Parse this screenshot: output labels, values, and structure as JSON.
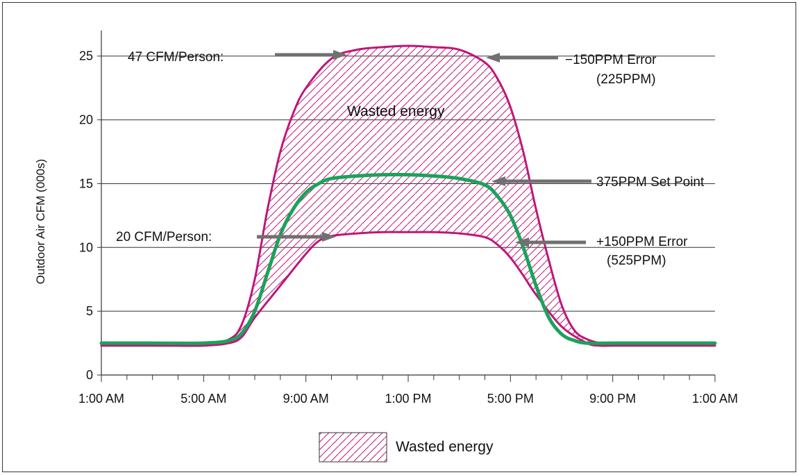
{
  "chart_data": {
    "type": "line",
    "title": "",
    "ylabel": "Outdoor Air CFM (000s)",
    "xlabel": "",
    "ylim": [
      0,
      27
    ],
    "yticks": [
      0,
      5,
      10,
      15,
      20,
      25
    ],
    "x_tick_labels": [
      "1:00 AM",
      "5:00 AM",
      "9:00 AM",
      "1:00 PM",
      "5:00 PM",
      "9:00 PM",
      "1:00 AM"
    ],
    "grid": "horizontal",
    "colors": {
      "upper": "#c0157a",
      "lower": "#c0157a",
      "setpoint": "#1aa35a",
      "hatch": "#c0157a",
      "arrow": "#707070"
    },
    "series": [
      {
        "key": "upper",
        "hours": [
          1,
          3,
          5,
          6,
          6.5,
          7,
          7.5,
          8,
          8.5,
          9,
          10,
          11,
          12,
          13,
          14,
          15,
          16,
          16.5,
          17,
          17.5,
          18,
          18.5,
          19,
          19.5,
          20,
          20.5,
          21,
          23,
          25
        ],
        "values": [
          2.4,
          2.4,
          2.4,
          2.8,
          4.0,
          7.5,
          13.0,
          17.5,
          20.5,
          22.5,
          24.8,
          25.5,
          25.7,
          25.8,
          25.7,
          25.5,
          24.5,
          23.2,
          21.0,
          17.5,
          13.0,
          9.0,
          5.5,
          3.5,
          2.8,
          2.5,
          2.4,
          2.4,
          2.4
        ]
      },
      {
        "key": "lower",
        "hours": [
          1,
          3,
          5,
          6,
          6.5,
          7,
          8,
          9,
          9.5,
          10,
          11,
          12,
          13,
          14,
          15,
          16,
          16.5,
          17,
          17.5,
          18,
          19,
          20,
          20.5,
          21,
          23,
          25
        ],
        "values": [
          2.3,
          2.3,
          2.3,
          2.5,
          3.0,
          4.5,
          7.0,
          9.5,
          10.5,
          10.9,
          11.1,
          11.2,
          11.2,
          11.2,
          11.1,
          10.8,
          10.2,
          9.2,
          7.8,
          6.3,
          3.8,
          2.5,
          2.3,
          2.3,
          2.3,
          2.3
        ]
      },
      {
        "key": "setpoint",
        "hours": [
          1,
          3,
          5,
          6,
          6.5,
          7,
          7.5,
          8,
          8.5,
          9,
          9.5,
          10,
          11,
          12,
          13,
          14,
          15,
          16,
          16.5,
          17,
          17.5,
          18,
          18.5,
          19,
          19.5,
          20,
          21,
          23,
          25
        ],
        "values": [
          2.5,
          2.5,
          2.5,
          2.7,
          3.3,
          5.0,
          8.0,
          11.0,
          13.0,
          14.3,
          15.0,
          15.4,
          15.6,
          15.7,
          15.7,
          15.6,
          15.4,
          14.9,
          14.0,
          12.5,
          10.0,
          7.0,
          4.5,
          3.2,
          2.7,
          2.5,
          2.5,
          2.5,
          2.5
        ]
      }
    ],
    "annotations": {
      "wasted_center": "Wasted energy",
      "cfm47": "47 CFM/Person:",
      "cfm20": "20 CFM/Person:",
      "minus_error_1": "−150PPM Error",
      "minus_error_2": "(225PPM)",
      "setpoint": "375PPM Set Point",
      "plus_error_1": "+150PPM Error",
      "plus_error_2": "(525PPM)"
    },
    "legend": {
      "position": "bottom-center",
      "label": "Wasted energy"
    }
  }
}
